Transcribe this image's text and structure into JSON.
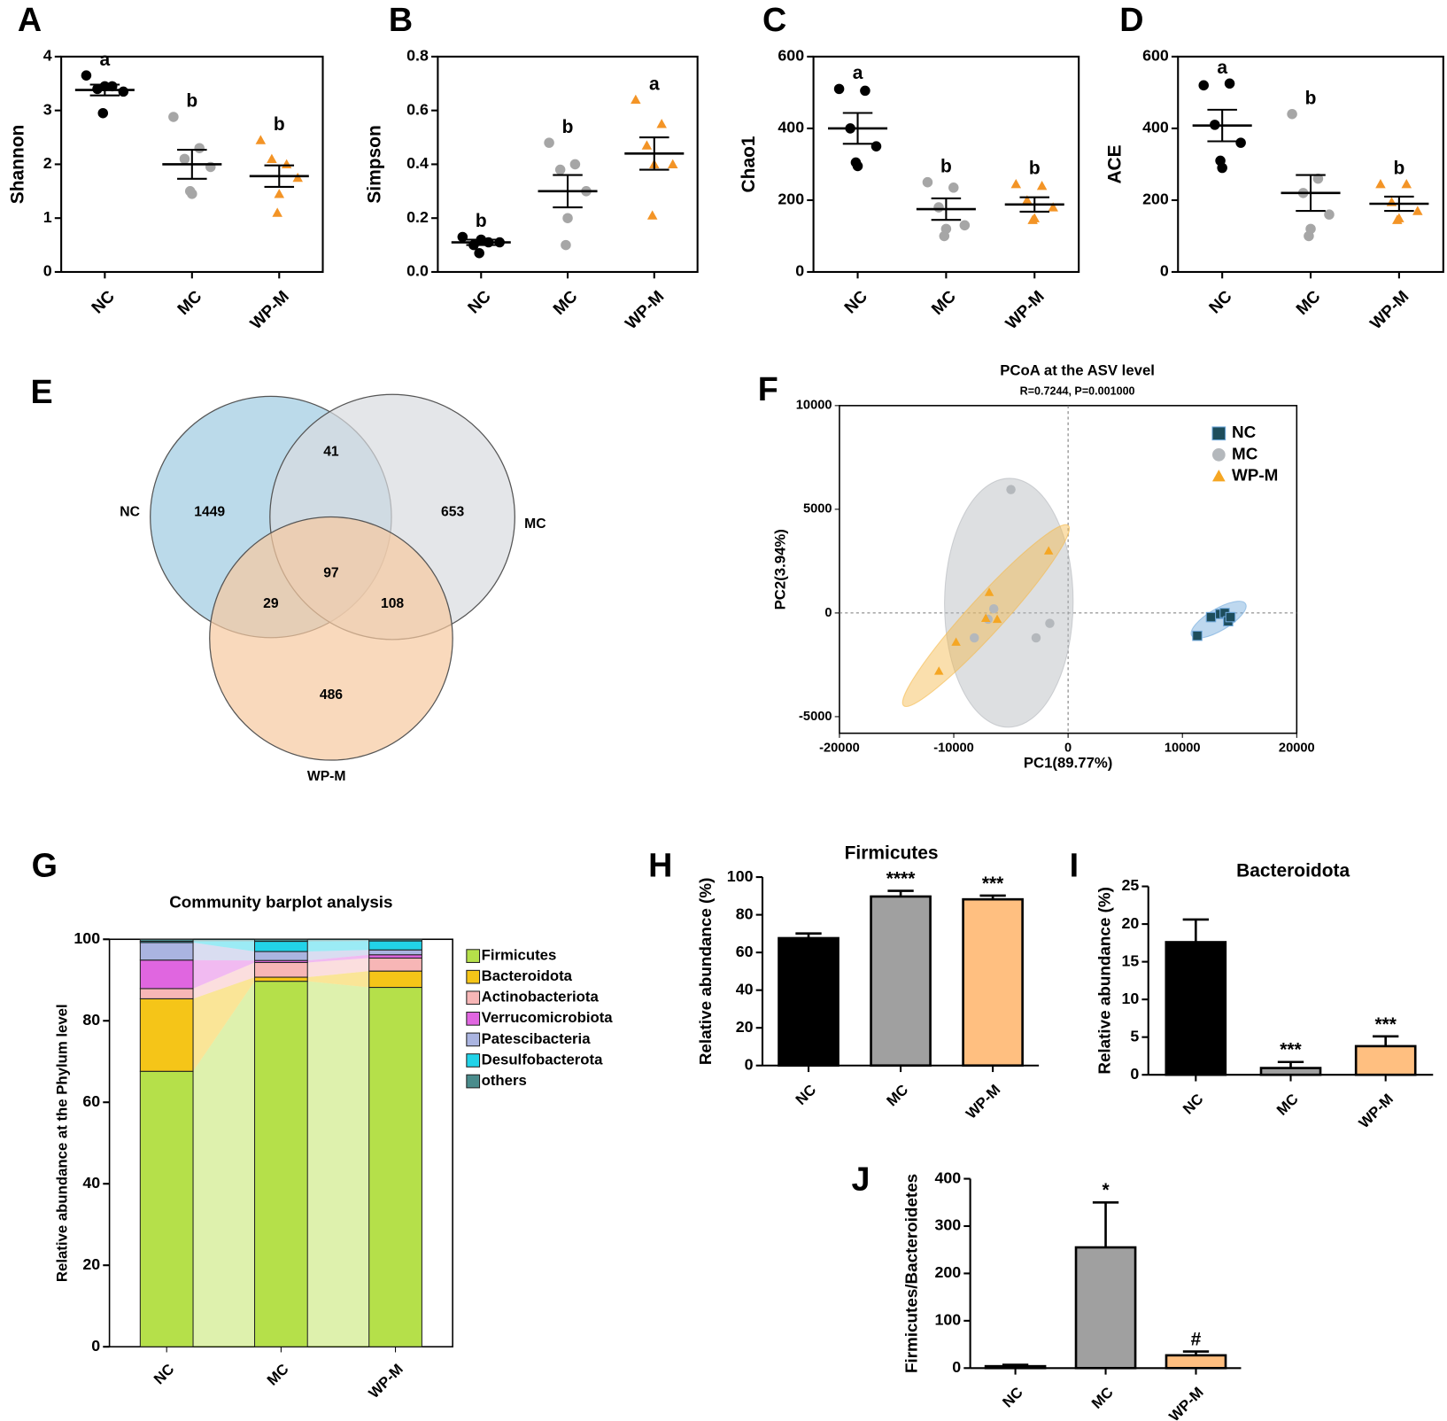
{
  "chart_data": [
    {
      "type": "dotplot",
      "label": "A",
      "ylabel": "Shannon",
      "ylim": [
        0,
        4
      ],
      "yticks": [
        0,
        1,
        2,
        3,
        4
      ],
      "groups": [
        {
          "name": "NC",
          "color": "#000000",
          "marker": "circle",
          "values": [
            3.65,
            3.45,
            3.4,
            3.35,
            3.45,
            2.95
          ],
          "mean": 3.38,
          "sem": 0.1,
          "letter": "a"
        },
        {
          "name": "MC",
          "color": "#a6a6a6",
          "marker": "circle",
          "values": [
            2.88,
            2.3,
            2.1,
            1.95,
            1.45,
            1.5
          ],
          "mean": 2.0,
          "sem": 0.27,
          "letter": "b"
        },
        {
          "name": "WP-M",
          "color": "#f39426",
          "marker": "triangle",
          "values": [
            2.45,
            2.0,
            2.1,
            1.75,
            1.45,
            1.1
          ],
          "mean": 1.78,
          "sem": 0.2,
          "letter": "b"
        }
      ]
    },
    {
      "type": "dotplot",
      "label": "B",
      "ylabel": "Simpson",
      "ylim": [
        0,
        0.8
      ],
      "yticks": [
        {
          "value": 0,
          "label": "0.0"
        },
        0.2,
        0.4,
        0.6,
        0.8
      ],
      "groups": [
        {
          "name": "NC",
          "color": "#000000",
          "marker": "circle",
          "values": [
            0.13,
            0.11,
            0.1,
            0.11,
            0.12,
            0.07
          ],
          "mean": 0.11,
          "sem": 0.01,
          "letter": "b"
        },
        {
          "name": "MC",
          "color": "#a6a6a6",
          "marker": "circle",
          "values": [
            0.48,
            0.4,
            0.38,
            0.3,
            0.2,
            0.1
          ],
          "mean": 0.3,
          "sem": 0.06,
          "letter": "b"
        },
        {
          "name": "WP-M",
          "color": "#f39426",
          "marker": "triangle",
          "values": [
            0.64,
            0.55,
            0.47,
            0.4,
            0.4,
            0.21
          ],
          "mean": 0.44,
          "sem": 0.06,
          "letter": "a"
        }
      ]
    },
    {
      "type": "dotplot",
      "label": "C",
      "ylabel": "Chao1",
      "ylim": [
        0,
        600
      ],
      "yticks": [
        0,
        200,
        400,
        600
      ],
      "groups": [
        {
          "name": "NC",
          "color": "#000000",
          "marker": "circle",
          "values": [
            510,
            505,
            400,
            350,
            295,
            305
          ],
          "mean": 400,
          "sem": 43,
          "letter": "a"
        },
        {
          "name": "MC",
          "color": "#a6a6a6",
          "marker": "circle",
          "values": [
            250,
            235,
            180,
            130,
            120,
            100
          ],
          "mean": 175,
          "sem": 30,
          "letter": "b"
        },
        {
          "name": "WP-M",
          "color": "#f39426",
          "marker": "triangle",
          "values": [
            245,
            240,
            200,
            180,
            150,
            145
          ],
          "mean": 188,
          "sem": 20,
          "letter": "b"
        }
      ]
    },
    {
      "type": "dotplot",
      "label": "D",
      "ylabel": "ACE",
      "ylim": [
        0,
        600
      ],
      "yticks": [
        0,
        200,
        400,
        600
      ],
      "groups": [
        {
          "name": "NC",
          "color": "#000000",
          "marker": "circle",
          "values": [
            520,
            525,
            410,
            360,
            290,
            310
          ],
          "mean": 408,
          "sem": 44,
          "letter": "a"
        },
        {
          "name": "MC",
          "color": "#a6a6a6",
          "marker": "circle",
          "values": [
            440,
            260,
            220,
            160,
            120,
            100
          ],
          "mean": 220,
          "sem": 50,
          "letter": "b"
        },
        {
          "name": "WP-M",
          "color": "#f39426",
          "marker": "triangle",
          "values": [
            245,
            245,
            195,
            170,
            150,
            145
          ],
          "mean": 190,
          "sem": 20,
          "letter": "b"
        }
      ]
    },
    {
      "type": "venn",
      "label": "E",
      "sets": [
        {
          "name": "NC",
          "color": "#9ecae1"
        },
        {
          "name": "MC",
          "color": "#d9dcdf"
        },
        {
          "name": "WP-M",
          "color": "#f6c9a0"
        }
      ],
      "values": [
        1449,
        653,
        486,
        41,
        29,
        108,
        97
      ]
    },
    {
      "type": "scatter",
      "label": "F",
      "title": "PCoA at the ASV level",
      "subtitle": "R=0.7244, P=0.001000",
      "xlabel": "PC1(89.77%)",
      "ylabel": "PC2(3.94%)",
      "xlim": [
        -20000,
        20000
      ],
      "xticks": [
        -20000,
        -10000,
        0,
        10000,
        20000
      ],
      "ylim": [
        -5800,
        10000
      ],
      "yticks": [
        -5000,
        0,
        5000,
        10000
      ],
      "series": [
        {
          "name": "NC",
          "color": "#1d4d5c",
          "ellipse_color": "#6fa8dc",
          "marker": "square",
          "x": [
            11300,
            12500,
            13300,
            13700,
            14000,
            14200
          ],
          "y": [
            -1100,
            -200,
            -50,
            0,
            -400,
            -200
          ]
        },
        {
          "name": "MC",
          "color": "#b4b8bc",
          "ellipse_color": "#b4b8bc",
          "marker": "circle",
          "x": [
            -5000,
            -6500,
            -8200,
            -2800,
            -1600,
            -7000
          ],
          "y": [
            5950,
            200,
            -1200,
            -1200,
            -500,
            -300
          ]
        },
        {
          "name": "WP-M",
          "color": "#f5a623",
          "ellipse_color": "#f5b94a",
          "marker": "triangle",
          "x": [
            -1700,
            -6900,
            -7200,
            -6200,
            -9800,
            -11300
          ],
          "y": [
            3000,
            1000,
            -250,
            -300,
            -1400,
            -2800
          ]
        }
      ]
    },
    {
      "type": "stacked_bar",
      "label": "G",
      "title": "Community barplot analysis",
      "ylabel": "Relative abundance at the Phylum level",
      "categories": [
        "NC",
        "MC",
        "WP-M"
      ],
      "ylim": [
        0,
        100
      ],
      "yticks": [
        0,
        20,
        40,
        60,
        80,
        100
      ],
      "series": [
        {
          "name": "Firmicutes",
          "color": "#b5e04a",
          "values": [
            67.6,
            89.7,
            88.2
          ]
        },
        {
          "name": "Bacteroidota",
          "color": "#f5c518",
          "values": [
            17.8,
            1.0,
            4.0
          ]
        },
        {
          "name": "Actinobacteriota",
          "color": "#f7b6b6",
          "values": [
            2.5,
            3.6,
            3.2
          ]
        },
        {
          "name": "Verrucomicrobiota",
          "color": "#e066e0",
          "values": [
            7.0,
            0.5,
            0.8
          ]
        },
        {
          "name": "Patescibacteria",
          "color": "#aab4e0",
          "values": [
            4.3,
            2.2,
            1.2
          ]
        },
        {
          "name": "Desulfobacterota",
          "color": "#22d3e8",
          "values": [
            0.3,
            2.5,
            2.2
          ]
        },
        {
          "name": "others",
          "color": "#4a8c8c",
          "values": [
            0.5,
            0.5,
            0.4
          ]
        }
      ]
    },
    {
      "type": "bar",
      "label": "H",
      "title": "Firmicutes",
      "ylabel": "Relative abundance (%)",
      "categories": [
        "NC",
        "MC",
        "WP-M"
      ],
      "values": [
        67.6,
        89.7,
        88.2
      ],
      "errors": [
        2.5,
        3,
        2
      ],
      "annotations": [
        null,
        "****",
        "***"
      ],
      "colors": [
        "#000000",
        "#a0a0a0",
        "#ffbf80"
      ],
      "ylim": [
        0,
        100
      ],
      "yticks": [
        0,
        20,
        40,
        60,
        80,
        100
      ]
    },
    {
      "type": "bar",
      "label": "I",
      "title": "Bacteroidota",
      "ylabel": "Relative abundance (%)",
      "categories": [
        "NC",
        "MC",
        "WP-M"
      ],
      "values": [
        17.6,
        0.9,
        3.8
      ],
      "errors": [
        3.0,
        0.8,
        1.3
      ],
      "annotations": [
        null,
        "***",
        "***"
      ],
      "colors": [
        "#000000",
        "#a0a0a0",
        "#ffbf80"
      ],
      "ylim": [
        0,
        25
      ],
      "yticks": [
        0,
        5,
        10,
        15,
        20,
        25
      ]
    },
    {
      "type": "bar",
      "label": "J",
      "ylabel": "Firmicutes/Bacteroidetes",
      "categories": [
        "NC",
        "MC",
        "WP-M"
      ],
      "values": [
        4,
        255,
        27
      ],
      "errors": [
        3,
        95,
        8
      ],
      "annotations": [
        null,
        "*",
        "#"
      ],
      "colors": [
        "#000000",
        "#a0a0a0",
        "#ffbf80"
      ],
      "ylim": [
        0,
        400
      ],
      "yticks": [
        0,
        100,
        200,
        300,
        400
      ]
    }
  ]
}
